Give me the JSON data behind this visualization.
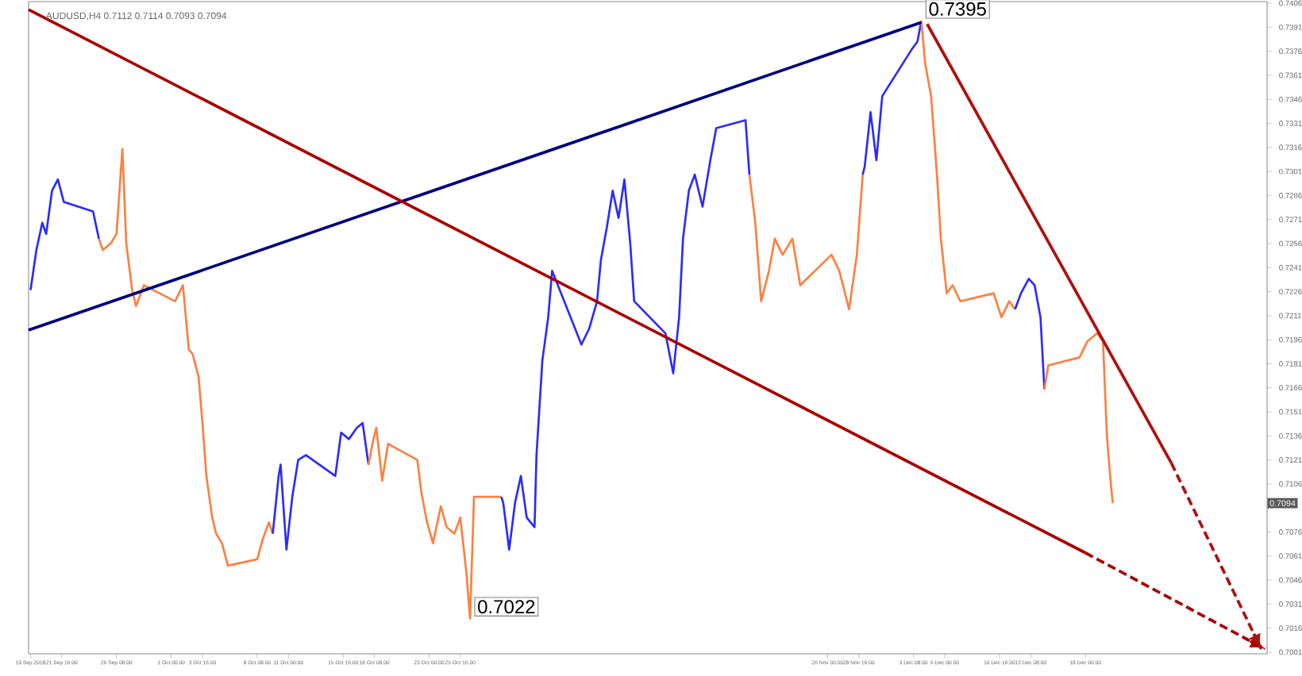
{
  "chart_data": {
    "type": "line",
    "title": "AUDUSD,H4 0.7112 0.7114 0.7093 0.7094",
    "xlim": [
      "2018-09-18T20:00",
      "2019-01-02T12:00"
    ],
    "ylim": [
      0.7,
      0.7407
    ],
    "xticks": [
      {
        "value": "2018-09-19T00:00",
        "label": "19 Sep 2018"
      },
      {
        "value": "2018-09-21T16:00",
        "label": "21 Sep 16:00"
      },
      {
        "value": "2018-09-26T08:00",
        "label": "26 Sep 08:00"
      },
      {
        "value": "2018-10-01T00:00",
        "label": "1 Oct 00:00"
      },
      {
        "value": "2018-10-03T16:00",
        "label": "3 Oct 16:00"
      },
      {
        "value": "2018-10-08T08:00",
        "label": "8 Oct 08:00"
      },
      {
        "value": "2018-10-11T00:00",
        "label": "11 Oct 00:00"
      },
      {
        "value": "2018-10-15T16:00",
        "label": "15 Oct 16:00"
      },
      {
        "value": "2018-10-18T08:00",
        "label": "18 Oct 08:00"
      },
      {
        "value": "2018-10-23T00:00",
        "label": "23 Oct 00:00"
      },
      {
        "value": "2018-10-25T16:00",
        "label": "25 Oct 16:00"
      },
      {
        "value": "2018-11-26T00:00",
        "label": "26 Nov 00:00"
      },
      {
        "value": "2018-11-28T16:00",
        "label": "28 Nov 16:00"
      },
      {
        "value": "2018-12-03T08:00",
        "label": "3 Dec 08:00"
      },
      {
        "value": "2018-12-06T00:00",
        "label": "6 Dec 00:00"
      },
      {
        "value": "2018-12-10T16:00",
        "label": "10 Dec 16:00"
      },
      {
        "value": "2018-12-13T08:00",
        "label": "13 Dec 08:00"
      },
      {
        "value": "2018-12-18T00:00",
        "label": "18 Dec 00:00"
      }
    ],
    "yticks": [
      0.7001,
      0.7016,
      0.7031,
      0.7046,
      0.7061,
      0.7076,
      {
        "value": 0.7091,
        "label": null
      },
      0.7106,
      0.7121,
      0.7136,
      0.7151,
      0.7166,
      0.7181,
      0.7196,
      0.7211,
      0.7226,
      0.7241,
      0.7256,
      0.7271,
      0.7286,
      0.7301,
      0.7316,
      0.7331,
      0.7346,
      0.7361,
      0.7376,
      0.7391,
      0.7406
    ],
    "series": [
      {
        "color": "#2b2bff",
        "x": [
          "2018-09-19T00:00",
          "2018-09-19T12:00",
          "2018-09-20T00:00",
          "2018-09-20T08:00",
          "2018-09-20T20:00",
          "2018-09-21T08:00",
          "2018-09-21T20:00",
          "2018-09-24T08:00",
          "2018-09-24T20:00"
        ],
        "values": [
          0.7227,
          0.7252,
          0.7269,
          0.7262,
          0.7289,
          0.7296,
          0.7282,
          0.7276,
          0.7259
        ]
      },
      {
        "color": "#ff7f3f",
        "x": [
          "2018-09-24T20:00",
          "2018-09-25T04:00",
          "2018-09-25T20:00",
          "2018-09-26T08:00",
          "2018-09-26T20:00",
          "2018-09-27T04:00",
          "2018-09-27T16:00",
          "2018-09-28T00:00",
          "2018-09-28T16:00",
          "2018-10-01T08:00",
          "2018-10-02T00:00",
          "2018-10-02T12:00",
          "2018-10-02T20:00",
          "2018-10-03T08:00",
          "2018-10-03T16:00",
          "2018-10-04T00:00",
          "2018-10-04T12:00",
          "2018-10-04T20:00",
          "2018-10-05T08:00",
          "2018-10-05T20:00",
          "2018-10-08T08:00",
          "2018-10-08T20:00",
          "2018-10-09T08:00",
          "2018-10-09T16:00"
        ],
        "values": [
          0.7259,
          0.7252,
          0.7256,
          0.7262,
          0.7315,
          0.7256,
          0.7227,
          0.7217,
          0.723,
          0.722,
          0.723,
          0.719,
          0.7187,
          0.7173,
          0.7144,
          0.7111,
          0.7085,
          0.7075,
          0.7069,
          0.7055,
          0.7059,
          0.7072,
          0.7082,
          0.7075
        ]
      },
      {
        "color": "#2b2bff",
        "x": [
          "2018-10-09T16:00",
          "2018-10-10T04:00",
          "2018-10-10T08:00",
          "2018-10-10T20:00",
          "2018-10-11T08:00",
          "2018-10-11T20:00",
          "2018-10-12T12:00",
          "2018-10-15T00:00",
          "2018-10-15T12:00",
          "2018-10-16T04:00",
          "2018-10-16T20:00",
          "2018-10-17T08:00",
          "2018-10-17T20:00"
        ],
        "values": [
          0.7075,
          0.7111,
          0.7118,
          0.7065,
          0.7098,
          0.7121,
          0.7124,
          0.7111,
          0.7138,
          0.7134,
          0.7141,
          0.7144,
          0.7118
        ]
      },
      {
        "color": "#ff7f3f",
        "x": [
          "2018-10-17T20:00",
          "2018-10-18T04:00",
          "2018-10-18T12:00",
          "2018-10-19T00:00",
          "2018-10-19T12:00",
          "2018-10-22T00:00",
          "2018-10-22T08:00",
          "2018-10-22T20:00",
          "2018-10-23T08:00",
          "2018-10-24T00:00",
          "2018-10-24T12:00",
          "2018-10-25T04:00",
          "2018-10-25T16:00",
          "2018-10-26T04:00",
          "2018-10-26T12:00",
          "2018-10-26T20:00",
          "2018-10-29T04:00"
        ],
        "values": [
          0.7118,
          0.7131,
          0.7141,
          0.7108,
          0.7131,
          0.7121,
          0.7101,
          0.7082,
          0.7069,
          0.7092,
          0.7079,
          0.7075,
          0.7085,
          0.7052,
          0.7022,
          0.7098,
          0.7098
        ]
      },
      {
        "color": "#2b2bff",
        "x": [
          "2018-10-29T04:00",
          "2018-10-29T08:00",
          "2018-10-29T20:00",
          "2018-10-30T08:00",
          "2018-10-30T20:00",
          "2018-10-31T08:00",
          "2018-11-01T00:00",
          "2018-11-01T04:00",
          "2018-11-01T16:00",
          "2018-11-02T04:00",
          "2018-11-02T12:00",
          "2018-11-05T00:00",
          "2018-11-05T16:00",
          "2018-11-06T08:00",
          "2018-11-06T16:00",
          "2018-11-07T04:00",
          "2018-11-07T16:00",
          "2018-11-08T04:00",
          "2018-11-08T16:00",
          "2018-11-09T04:00",
          "2018-11-09T12:00",
          "2018-11-12T04:00",
          "2018-11-12T20:00",
          "2018-11-13T08:00",
          "2018-11-13T16:00",
          "2018-11-14T04:00",
          "2018-11-14T16:00",
          "2018-11-15T08:00",
          "2018-11-16T00:00",
          "2018-11-16T12:00",
          "2018-11-19T00:00",
          "2018-11-19T08:00"
        ],
        "values": [
          0.7098,
          0.7094,
          0.7065,
          0.7094,
          0.7111,
          0.7085,
          0.7079,
          0.7124,
          0.7183,
          0.721,
          0.7239,
          0.7193,
          0.7203,
          0.722,
          0.7246,
          0.7266,
          0.7289,
          0.7272,
          0.7296,
          0.7256,
          0.722,
          0.72,
          0.7175,
          0.721,
          0.7259,
          0.7289,
          0.7299,
          0.7279,
          0.7308,
          0.7328,
          0.7333,
          0.7299
        ]
      },
      {
        "color": "#ff7f3f",
        "x": [
          "2018-11-19T08:00",
          "2018-11-19T20:00",
          "2018-11-20T08:00",
          "2018-11-21T00:00",
          "2018-11-21T12:00",
          "2018-11-22T04:00",
          "2018-11-23T00:00",
          "2018-11-23T16:00",
          "2018-11-26T08:00",
          "2018-11-27T00:00",
          "2018-11-27T20:00",
          "2018-11-28T12:00",
          "2018-11-29T00:00"
        ],
        "values": [
          0.7299,
          0.7269,
          0.722,
          0.7239,
          0.7259,
          0.7249,
          0.7259,
          0.723,
          0.7249,
          0.7239,
          0.7215,
          0.7249,
          0.7299
        ]
      },
      {
        "color": "#2b2bff",
        "x": [
          "2018-11-29T00:00",
          "2018-11-29T04:00",
          "2018-11-29T16:00",
          "2018-11-30T04:00",
          "2018-11-30T16:00",
          "2018-12-03T04:00",
          "2018-12-03T16:00",
          "2018-12-04T00:00"
        ],
        "values": [
          0.7299,
          0.7304,
          0.7338,
          0.7308,
          0.7348,
          0.7377,
          0.7382,
          0.7395
        ]
      },
      {
        "color": "#ff7f3f",
        "x": [
          "2018-12-04T00:00",
          "2018-12-04T08:00",
          "2018-12-04T20:00",
          "2018-12-05T08:00",
          "2018-12-05T16:00",
          "2018-12-06T04:00",
          "2018-12-06T16:00",
          "2018-12-07T08:00",
          "2018-12-10T04:00",
          "2018-12-10T20:00",
          "2018-12-11T12:00",
          "2018-12-12T00:00"
        ],
        "values": [
          0.7395,
          0.7368,
          0.7348,
          0.7299,
          0.7259,
          0.7225,
          0.723,
          0.722,
          0.7225,
          0.721,
          0.722,
          0.7215
        ]
      },
      {
        "color": "#2b2bff",
        "x": [
          "2018-12-12T00:00",
          "2018-12-12T12:00",
          "2018-12-13T04:00",
          "2018-12-13T16:00",
          "2018-12-14T04:00",
          "2018-12-14T12:00"
        ],
        "values": [
          0.7215,
          0.7225,
          0.7234,
          0.723,
          0.721,
          0.7165
        ]
      },
      {
        "color": "#ff7f3f",
        "x": [
          "2018-12-14T12:00",
          "2018-12-14T20:00",
          "2018-12-17T12:00",
          "2018-12-18T04:00",
          "2018-12-19T00:00",
          "2018-12-19T12:00",
          "2018-12-19T20:00",
          "2018-12-20T04:00",
          "2018-12-20T08:00"
        ],
        "values": [
          0.7165,
          0.718,
          0.7185,
          0.7195,
          0.72,
          0.7195,
          0.7136,
          0.7106,
          0.7094
        ]
      },
      {
        "color": "#00007f",
        "x": [
          "2018-09-18T20:00",
          "2018-12-04T00:00"
        ],
        "values": [
          0.7202,
          0.7394
        ]
      },
      {
        "color": "#aa0000",
        "x": [
          "2018-09-18T20:00",
          "2018-12-18T00:00"
        ],
        "values": [
          0.7402,
          0.7063
        ]
      },
      {
        "color": "#aa0000",
        "line_style": "dashed",
        "x": [
          "2018-12-18T00:00",
          "2019-01-02T08:00"
        ],
        "values": [
          0.7063,
          0.7003
        ]
      },
      {
        "color": "#b01010",
        "x": [
          "2018-12-04T12:00",
          "2018-12-25T08:00"
        ],
        "values": [
          0.7393,
          0.7119
        ]
      },
      {
        "color": "#b01010",
        "line_style": "dashed",
        "x": [
          "2018-12-25T08:00",
          "2019-01-02T00:00"
        ],
        "values": [
          0.7119,
          0.7003
        ]
      }
    ],
    "annotations": [
      {
        "text": "0.7395",
        "x": "2018-12-04T00:00",
        "y": 0.7395
      },
      {
        "text": "0.7022",
        "x": "2018-10-26T12:00",
        "y": 0.7022
      },
      "0.7094"
    ]
  }
}
